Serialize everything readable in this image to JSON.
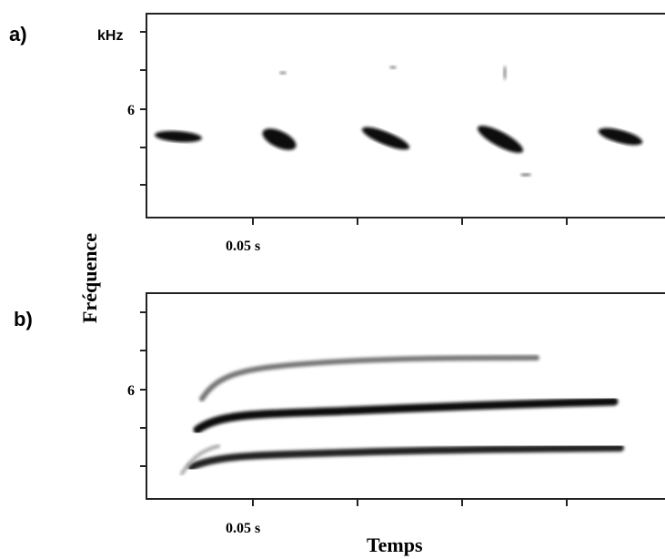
{
  "panels": [
    {
      "label": "a)",
      "y_unit": "kHz",
      "y_tick": "6",
      "x_tick": "0.05 s"
    },
    {
      "label": "b)",
      "y_tick": "6",
      "x_tick": "0.05 s"
    }
  ],
  "y_axis_label": "Fréquence",
  "x_axis_label": "Temps"
}
